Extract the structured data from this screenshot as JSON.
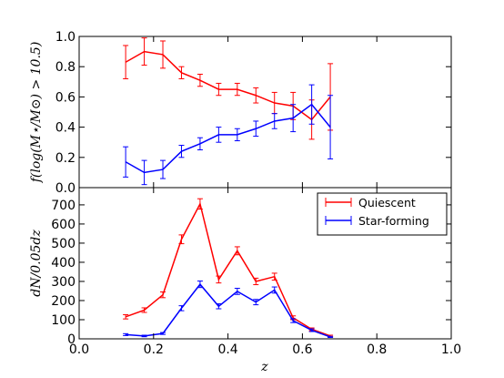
{
  "chart_data": [
    {
      "type": "line",
      "panel": "top",
      "xlabel": "",
      "ylabel": "f(log(M⋆/M⊙) > 10.5)",
      "xlim": [
        0.0,
        1.0
      ],
      "ylim": [
        0.0,
        1.0
      ],
      "xticks": [
        "0.0",
        "0.2",
        "0.4",
        "0.6",
        "0.8",
        "1.0"
      ],
      "yticks": [
        "0.0",
        "0.2",
        "0.4",
        "0.6",
        "0.8",
        "1.0"
      ],
      "grid": false,
      "x": [
        0.125,
        0.175,
        0.225,
        0.275,
        0.325,
        0.375,
        0.425,
        0.475,
        0.525,
        0.575,
        0.625,
        0.675
      ],
      "series": [
        {
          "name": "Quiescent",
          "color": "#ff0000",
          "values": [
            0.83,
            0.9,
            0.88,
            0.76,
            0.71,
            0.65,
            0.65,
            0.61,
            0.56,
            0.54,
            0.45,
            0.6
          ],
          "err": [
            0.11,
            0.09,
            0.09,
            0.04,
            0.04,
            0.04,
            0.04,
            0.05,
            0.07,
            0.09,
            0.13,
            0.22
          ]
        },
        {
          "name": "Star-forming",
          "color": "#0000ff",
          "values": [
            0.17,
            0.1,
            0.12,
            0.24,
            0.29,
            0.35,
            0.35,
            0.39,
            0.44,
            0.46,
            0.55,
            0.4
          ],
          "err": [
            0.1,
            0.08,
            0.06,
            0.04,
            0.04,
            0.05,
            0.04,
            0.05,
            0.05,
            0.09,
            0.13,
            0.21
          ]
        }
      ]
    },
    {
      "type": "line",
      "panel": "bottom",
      "xlabel": "z",
      "ylabel": "dN/0.05dz",
      "xlim": [
        0.0,
        1.0
      ],
      "ylim": [
        0,
        790
      ],
      "xticks": [
        "0.0",
        "0.2",
        "0.4",
        "0.6",
        "0.8",
        "1.0"
      ],
      "yticks": [
        "0",
        "100",
        "200",
        "300",
        "400",
        "500",
        "600",
        "700"
      ],
      "grid": false,
      "legend": "top-right",
      "x": [
        0.125,
        0.175,
        0.225,
        0.275,
        0.325,
        0.375,
        0.425,
        0.475,
        0.525,
        0.575,
        0.625,
        0.675
      ],
      "series": [
        {
          "name": "Quiescent",
          "color": "#ff0000",
          "values": [
            115,
            150,
            230,
            520,
            705,
            310,
            460,
            300,
            325,
            110,
            50,
            15
          ],
          "err": [
            11,
            12,
            15,
            23,
            27,
            18,
            21,
            17,
            18,
            10,
            7,
            4
          ]
        },
        {
          "name": "Star-forming",
          "color": "#0000ff",
          "values": [
            22,
            15,
            28,
            160,
            285,
            170,
            248,
            192,
            255,
            95,
            45,
            10
          ],
          "err": [
            5,
            4,
            5,
            13,
            17,
            13,
            16,
            14,
            16,
            10,
            7,
            3
          ]
        }
      ]
    }
  ]
}
